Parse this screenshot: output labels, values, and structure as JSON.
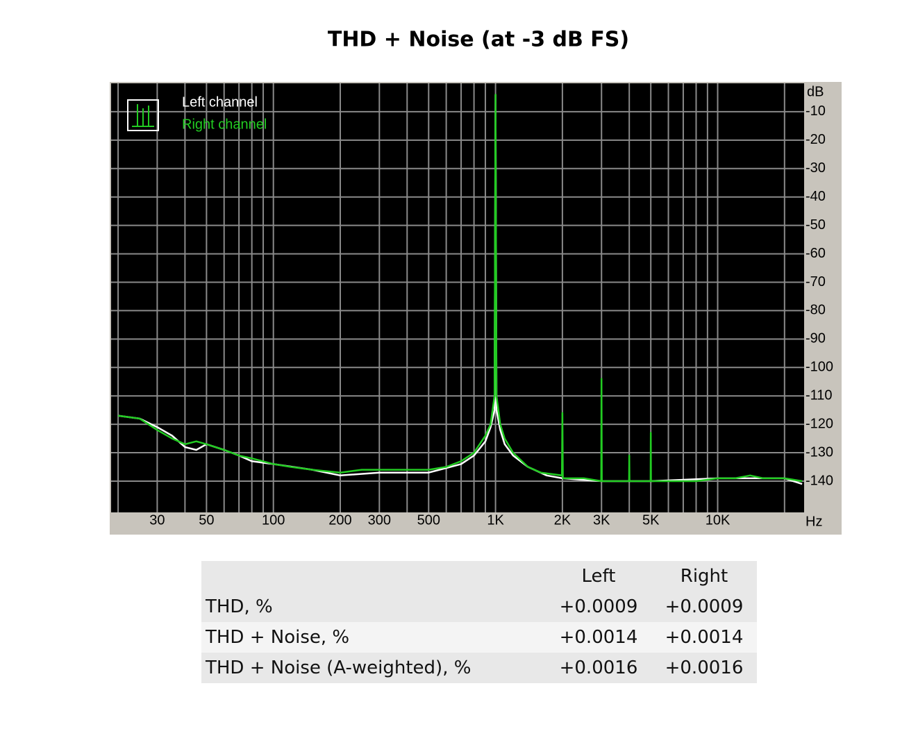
{
  "chart_data": {
    "type": "line",
    "title": "THD + Noise (at -3 dB FS)",
    "x_label": "Hz",
    "y_label": "dB",
    "xlog": true,
    "xlim": [
      18.6,
      24500
    ],
    "ylim": [
      -151,
      0
    ],
    "grid": true,
    "legend": "upper left",
    "xticks": [
      30,
      50,
      100,
      200,
      300,
      500,
      {
        "value": 1000,
        "label": "1K"
      },
      {
        "value": 2000,
        "label": "2K"
      },
      {
        "value": 3000,
        "label": "3K"
      },
      {
        "value": 5000,
        "label": "5K"
      },
      {
        "value": 10000,
        "label": "10K"
      }
    ],
    "xminor": [
      20,
      40,
      60,
      70,
      80,
      90,
      400,
      600,
      700,
      800,
      900,
      4000,
      6000,
      7000,
      8000,
      9000,
      20000
    ],
    "yticks": [
      -10,
      -20,
      -30,
      -40,
      -50,
      -60,
      -70,
      -80,
      -90,
      -100,
      -110,
      -120,
      -130,
      -140
    ],
    "series": [
      {
        "name": "Left channel",
        "color": "#ffffff",
        "x": [
          20,
          25,
          30,
          35,
          40,
          45,
          50,
          60,
          70,
          80,
          100,
          150,
          200,
          300,
          500,
          700,
          800,
          900,
          950,
          990,
          1000,
          1010,
          1050,
          1100,
          1200,
          1400,
          1700,
          2000,
          3000,
          5000,
          10000,
          20000,
          24000
        ],
        "values": [
          -117,
          -118,
          -121,
          -124,
          -128,
          -129,
          -127,
          -129,
          -131,
          -133,
          -134,
          -136,
          -138,
          -137,
          -137,
          -134,
          -131,
          -126,
          -121,
          -115,
          -4,
          -115,
          -122,
          -127,
          -131,
          -135,
          -138,
          -139,
          -140,
          -140,
          -139,
          -139,
          -141
        ]
      },
      {
        "name": "Right channel",
        "color": "#22cc22",
        "x": [
          20,
          25,
          30,
          35,
          40,
          45,
          50,
          60,
          70,
          80,
          100,
          120,
          150,
          200,
          250,
          300,
          400,
          500,
          600,
          700,
          800,
          900,
          950,
          990,
          1000,
          1010,
          1050,
          1100,
          1200,
          1400,
          1600,
          1990,
          2000,
          2010,
          2500,
          2990,
          3000,
          3010,
          3500,
          3990,
          4000,
          4010,
          4990,
          5000,
          5010,
          6000,
          8000,
          10000,
          12000,
          14000,
          16000,
          20000,
          24000
        ],
        "values": [
          -117,
          -118,
          -122,
          -125,
          -127,
          -126,
          -127,
          -129,
          -131,
          -132,
          -134,
          -135,
          -136,
          -137,
          -136,
          -136,
          -136,
          -136,
          -135,
          -133,
          -130,
          -124,
          -120,
          -110,
          -4,
          -110,
          -120,
          -125,
          -130,
          -135,
          -137,
          -138,
          -116,
          -139,
          -139,
          -140,
          -104,
          -140,
          -140,
          -140,
          -131,
          -140,
          -140,
          -123,
          -140,
          -140,
          -140,
          -139,
          -139,
          -138,
          -139,
          -139,
          -140
        ]
      }
    ]
  },
  "table": {
    "columns": [
      "Left",
      "Right"
    ],
    "rows": [
      [
        "THD, %",
        "+0.0009",
        "+0.0009"
      ],
      [
        "THD + Noise, %",
        "+0.0014",
        "+0.0014"
      ],
      [
        "THD + Noise (A-weighted), %",
        "+0.0016",
        "+0.0016"
      ]
    ]
  }
}
